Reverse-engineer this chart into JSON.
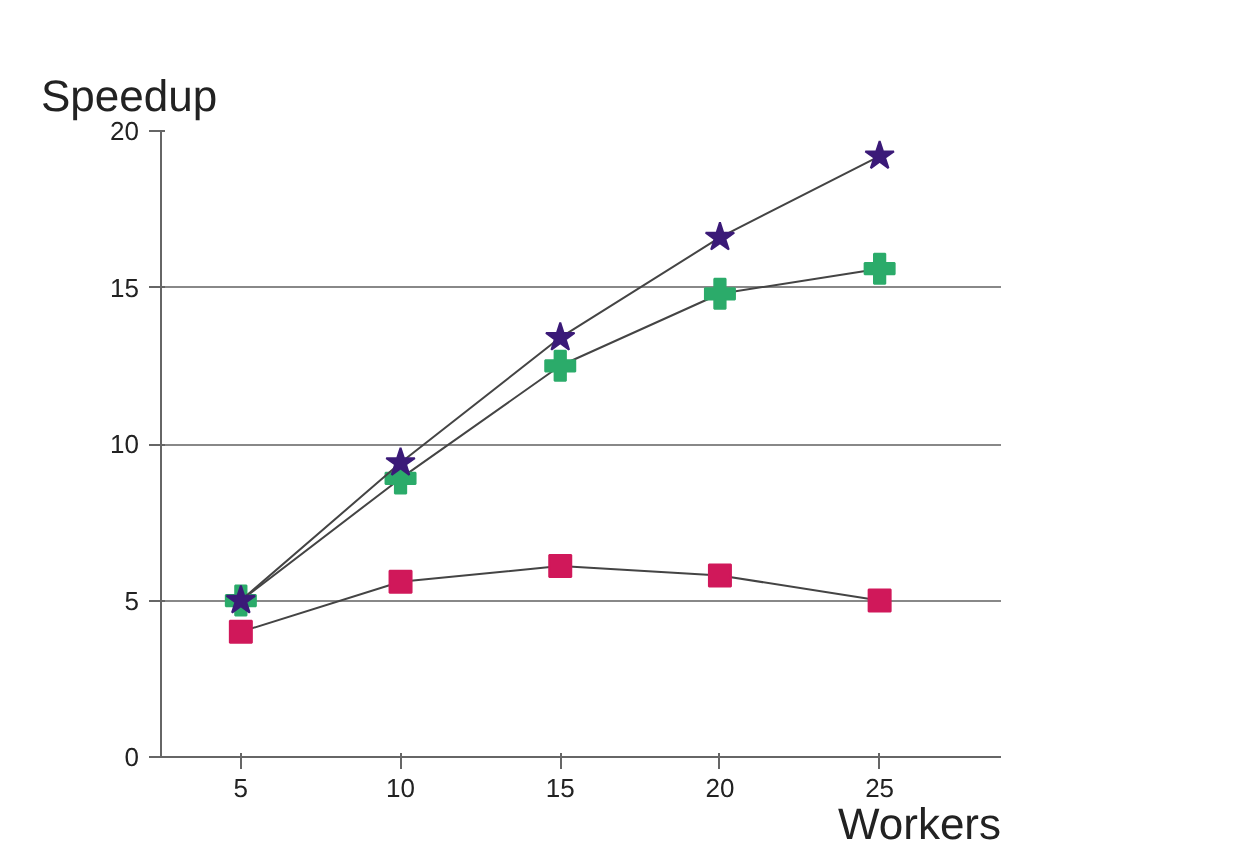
{
  "chart_data": {
    "type": "line",
    "xlabel": "Workers",
    "ylabel": "Speedup",
    "x": [
      5,
      10,
      15,
      20,
      25
    ],
    "series": [
      {
        "color": "#3b1a78",
        "marker": "star",
        "values": [
          5.0,
          9.4,
          13.4,
          16.6,
          19.2
        ]
      },
      {
        "color": "#2bab6a",
        "marker": "cross",
        "values": [
          5.0,
          8.9,
          12.5,
          14.8,
          15.6
        ]
      },
      {
        "color": "#d0185a",
        "marker": "square",
        "values": [
          4.0,
          5.6,
          6.1,
          5.8,
          5.0
        ]
      }
    ],
    "xlim": [
      2.5,
      28.8
    ],
    "ylim": [
      0,
      20
    ],
    "xticks": [
      5,
      10,
      15,
      20,
      25
    ],
    "yticks": [
      0,
      5,
      10,
      15,
      20
    ],
    "grid": "y"
  }
}
